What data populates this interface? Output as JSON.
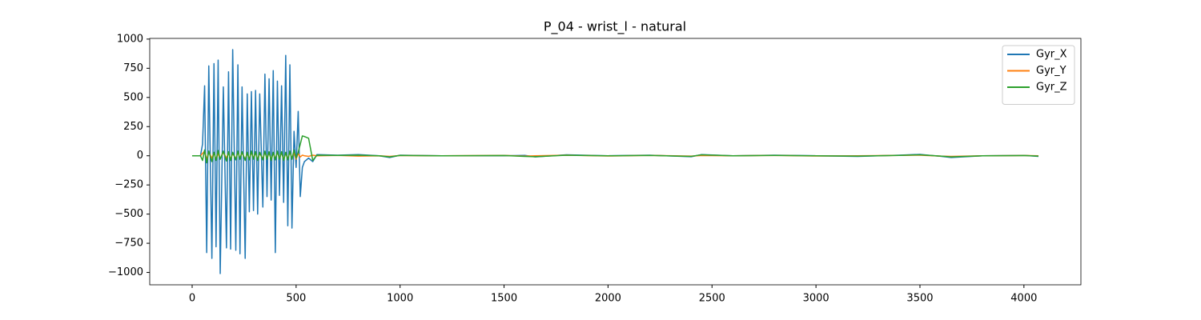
{
  "chart_data": {
    "type": "line",
    "title": "P_04 - wrist_l - natural",
    "x": [
      0,
      40,
      50,
      60,
      70,
      80,
      95,
      105,
      115,
      125,
      135,
      150,
      165,
      175,
      185,
      195,
      210,
      220,
      230,
      240,
      255,
      265,
      275,
      285,
      295,
      305,
      315,
      325,
      340,
      350,
      360,
      370,
      380,
      390,
      400,
      410,
      420,
      430,
      440,
      450,
      460,
      470,
      480,
      490,
      500,
      510,
      520,
      530,
      540,
      560,
      580,
      600,
      700,
      800,
      900,
      950,
      1000,
      1200,
      1500,
      1600,
      1650,
      1800,
      2000,
      2200,
      2400,
      2450,
      2600,
      2800,
      3000,
      3200,
      3400,
      3500,
      3600,
      3650,
      3800,
      4000,
      4070
    ],
    "series": [
      {
        "name": "Gyr_X",
        "color": "#1f77b4",
        "values": [
          0,
          0,
          100,
          600,
          -830,
          770,
          -880,
          790,
          -780,
          820,
          -1010,
          590,
          -790,
          720,
          -800,
          910,
          -810,
          780,
          -840,
          590,
          -880,
          530,
          -480,
          550,
          -470,
          560,
          -500,
          530,
          -440,
          700,
          -350,
          660,
          -380,
          730,
          -830,
          640,
          -340,
          600,
          -400,
          860,
          -600,
          780,
          -620,
          210,
          -100,
          380,
          -350,
          -100,
          -50,
          -20,
          -50,
          10,
          5,
          10,
          0,
          -15,
          5,
          0,
          0,
          3,
          -10,
          8,
          0,
          5,
          -8,
          10,
          0,
          5,
          0,
          -5,
          5,
          12,
          -5,
          -15,
          0,
          3,
          -5
        ]
      },
      {
        "name": "Gyr_Y",
        "color": "#ff7f0e",
        "values": [
          0,
          0,
          20,
          40,
          -30,
          30,
          -20,
          25,
          -30,
          20,
          -25,
          30,
          -20,
          25,
          -30,
          20,
          -25,
          30,
          -20,
          25,
          -30,
          20,
          -25,
          30,
          -20,
          25,
          -30,
          20,
          -25,
          30,
          -20,
          25,
          -30,
          20,
          -25,
          30,
          -20,
          25,
          -30,
          20,
          -25,
          30,
          -20,
          25,
          -30,
          20,
          -10,
          5,
          0,
          -5,
          5,
          0,
          3,
          -3,
          0,
          -5,
          2,
          0,
          3,
          -3,
          0,
          5,
          -2,
          3,
          -3,
          2,
          0,
          3,
          -2,
          0,
          3,
          5,
          -3,
          -5,
          0,
          2,
          0
        ]
      },
      {
        "name": "Gyr_Z",
        "color": "#2ca02c",
        "values": [
          0,
          0,
          -40,
          50,
          -60,
          40,
          -50,
          30,
          -40,
          45,
          -30,
          40,
          -45,
          35,
          -40,
          30,
          -35,
          40,
          -30,
          35,
          -40,
          30,
          -35,
          40,
          -30,
          35,
          -40,
          30,
          -35,
          40,
          -30,
          35,
          -40,
          30,
          -35,
          40,
          -30,
          35,
          -40,
          30,
          -35,
          40,
          -30,
          50,
          -20,
          30,
          100,
          170,
          165,
          150,
          -40,
          5,
          3,
          5,
          0,
          -10,
          3,
          0,
          2,
          -5,
          -8,
          5,
          0,
          3,
          -5,
          8,
          0,
          3,
          0,
          -3,
          3,
          8,
          -3,
          -10,
          0,
          2,
          -3
        ]
      }
    ],
    "xlim": [
      -204,
      4274
    ],
    "xticks": [
      0,
      500,
      1000,
      1500,
      2000,
      2500,
      3000,
      3500,
      4000
    ],
    "ylim": [
      -1106,
      1006
    ],
    "yticks": [
      {
        "value": -1000,
        "label": "−1000"
      },
      {
        "value": -750,
        "label": "−750"
      },
      {
        "value": -500,
        "label": "−500"
      },
      {
        "value": -250,
        "label": "−250"
      },
      0,
      250,
      500,
      750,
      1000
    ],
    "legend": "upper right",
    "grid": false
  }
}
